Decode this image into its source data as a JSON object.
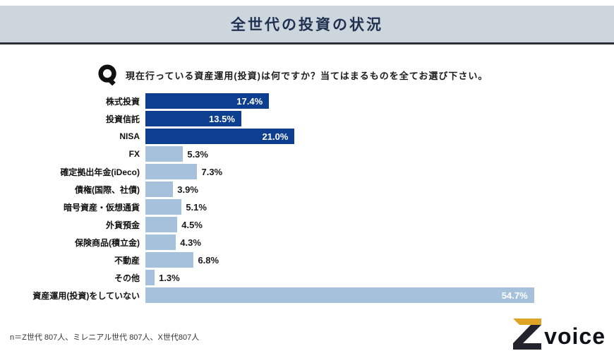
{
  "header": {
    "title": "全世代の投資の状況"
  },
  "question": {
    "icon": "Q-icon",
    "text": "現在行っている資産運用(投資)は何ですか？当てはまるものを全てお選び下さい。"
  },
  "chart_data": {
    "type": "bar",
    "orientation": "horizontal",
    "title": "全世代の投資の状況",
    "categories": [
      "株式投資",
      "投資信託",
      "NISA",
      "FX",
      "確定拠出年金(iDeco)",
      "債権(国際、社債)",
      "暗号資産・仮想通貨",
      "外貨預金",
      "保険商品(積立金)",
      "不動産",
      "その他",
      "資産運用(投資)をしていない"
    ],
    "values": [
      17.4,
      13.5,
      21.0,
      5.3,
      7.3,
      3.9,
      5.1,
      4.5,
      4.3,
      6.8,
      1.3,
      54.7
    ],
    "unit": "%",
    "xlim": [
      0,
      60
    ],
    "grid": false,
    "legend": false,
    "highlight_color": "#0d3e90",
    "bar_color": "#a6c1dc",
    "highlighted": [
      true,
      true,
      true,
      false,
      false,
      false,
      false,
      false,
      false,
      false,
      false,
      false
    ],
    "label_inside": [
      true,
      true,
      true,
      false,
      false,
      false,
      false,
      false,
      false,
      false,
      false,
      true
    ]
  },
  "footer": {
    "note": "n＝Z世代 807人、ミレニアル世代 807人、X世代807人"
  },
  "logo": {
    "mark": "Z",
    "text": "voice"
  },
  "colors": {
    "header_bg": "#cdd6dd",
    "header_text": "#1f3050",
    "divider": "#2e2e38",
    "logo_gold": "#dfa425",
    "logo_navy": "#23232e"
  }
}
